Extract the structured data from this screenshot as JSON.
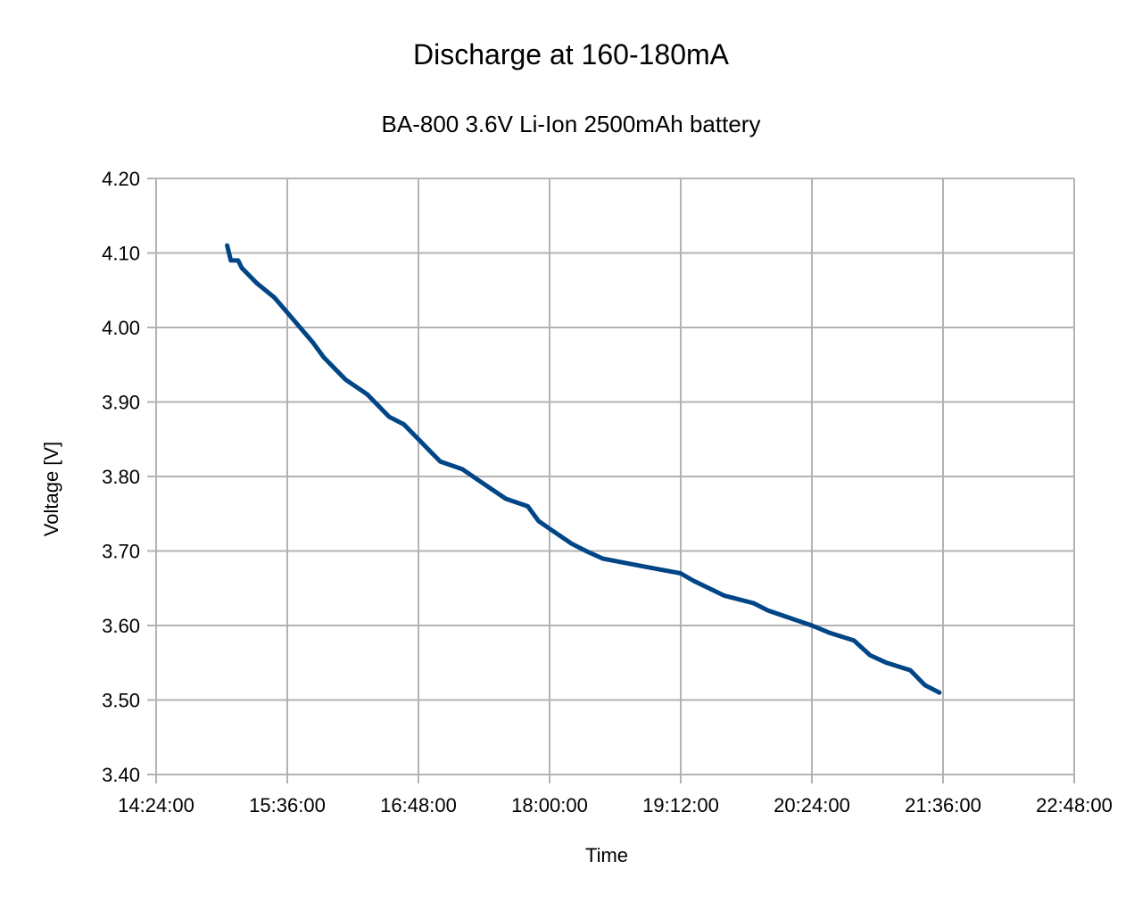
{
  "chart_data": {
    "type": "line",
    "title": "Discharge at 160-180mA",
    "subtitle": "BA-800 3.6V Li-Ion 2500mAh battery",
    "xlabel": "Time",
    "ylabel": "Voltage [V]",
    "xlim": [
      "14:24:00",
      "22:48:00"
    ],
    "ylim": [
      3.4,
      4.2
    ],
    "x_ticks": [
      "14:24:00",
      "15:36:00",
      "16:48:00",
      "18:00:00",
      "19:12:00",
      "20:24:00",
      "21:36:00",
      "22:48:00"
    ],
    "y_ticks": [
      "4.20",
      "4.10",
      "4.00",
      "3.90",
      "3.80",
      "3.70",
      "3.60",
      "3.50",
      "3.40"
    ],
    "grid": true,
    "legend": "none",
    "colors": {
      "series": "#004586",
      "grid": "#b3b3b3"
    },
    "series": [
      {
        "x": [
          "15:03:00",
          "15:05:00",
          "15:09:00",
          "15:11:00",
          "15:19:00",
          "15:29:00",
          "15:36:00",
          "15:50:00",
          "15:56:00",
          "16:08:00",
          "16:20:00",
          "16:32:00",
          "16:40:00",
          "16:48:00",
          "17:00:00",
          "17:12:00",
          "17:24:00",
          "17:36:00",
          "17:48:00",
          "17:54:00",
          "18:00:00",
          "18:12:00",
          "18:20:00",
          "18:29:00",
          "18:50:00",
          "19:12:00",
          "19:19:00",
          "19:36:00",
          "19:52:00",
          "20:00:00",
          "20:24:00",
          "20:34:00",
          "20:47:00",
          "20:56:00",
          "21:05:00",
          "21:18:00",
          "21:26:00",
          "21:34:00"
        ],
        "values": [
          4.11,
          4.09,
          4.09,
          4.08,
          4.06,
          4.04,
          4.02,
          3.98,
          3.96,
          3.93,
          3.91,
          3.88,
          3.87,
          3.85,
          3.82,
          3.81,
          3.79,
          3.77,
          3.76,
          3.74,
          3.73,
          3.71,
          3.7,
          3.69,
          3.68,
          3.67,
          3.66,
          3.64,
          3.63,
          3.62,
          3.6,
          3.59,
          3.58,
          3.56,
          3.55,
          3.54,
          3.52,
          3.51
        ]
      }
    ]
  }
}
